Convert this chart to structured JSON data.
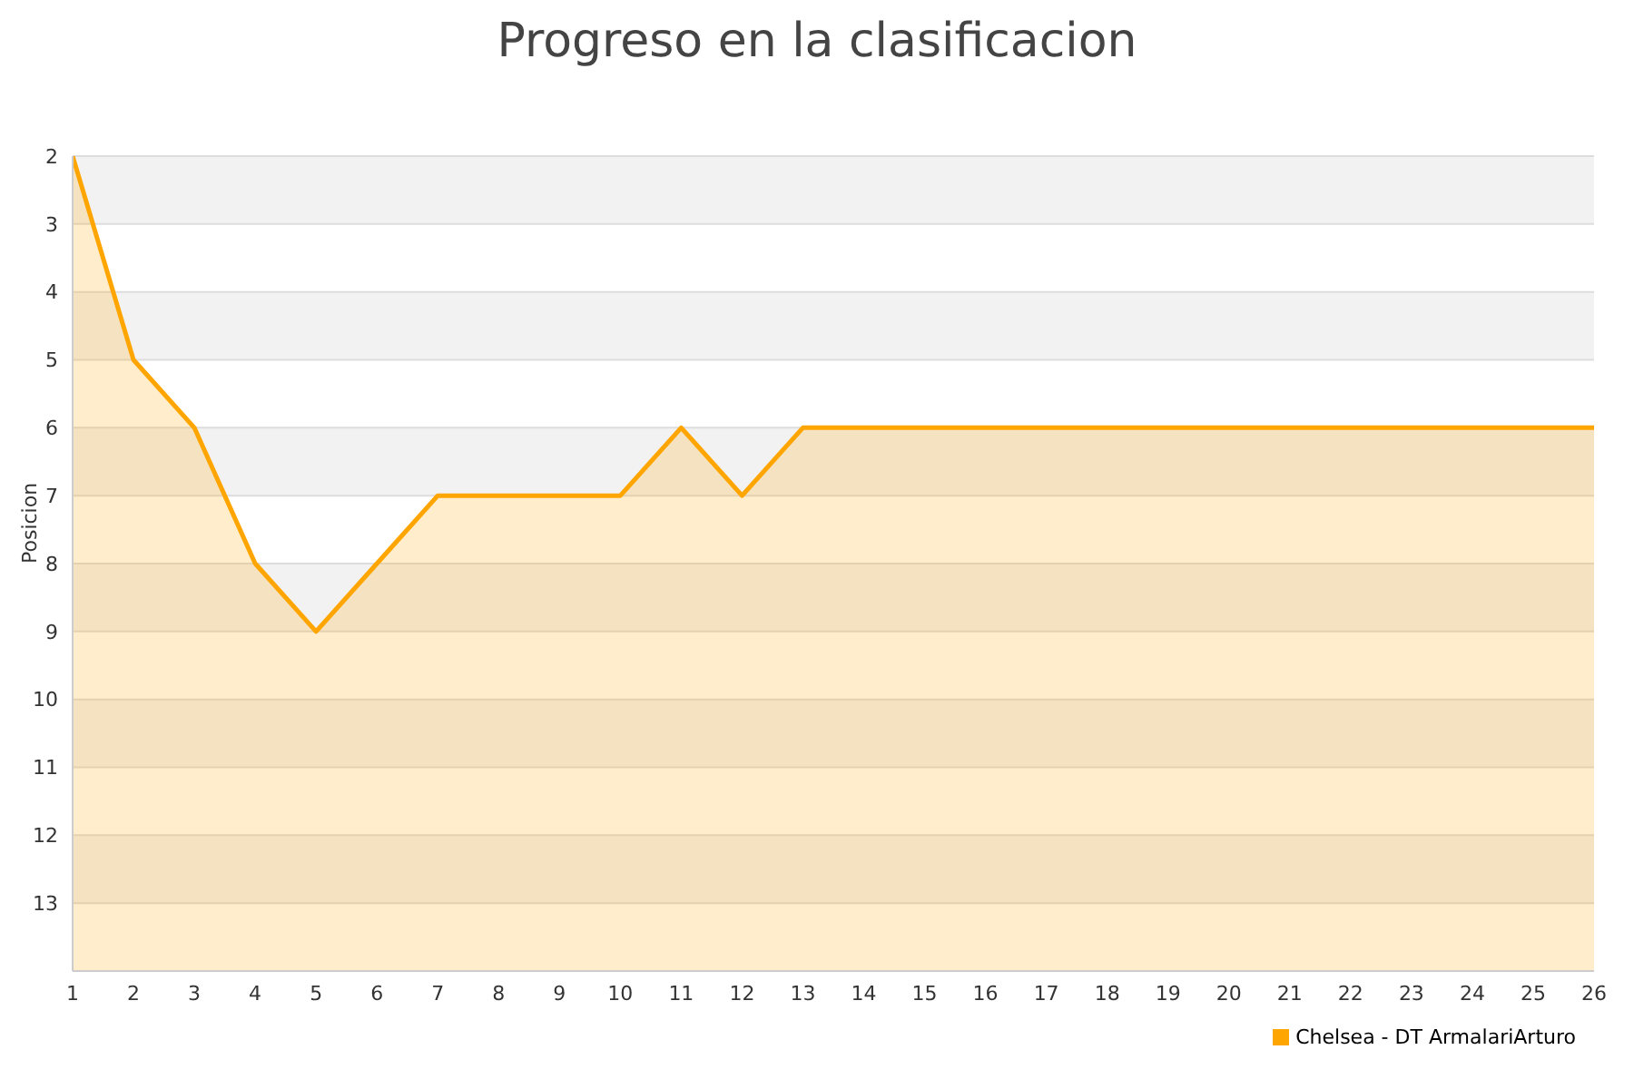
{
  "chart_data": {
    "type": "line",
    "title": "Progreso en la clasificacion",
    "ylabel": "Posicion",
    "x": [
      1,
      2,
      3,
      4,
      5,
      6,
      7,
      8,
      9,
      10,
      11,
      12,
      13,
      14,
      15,
      16,
      17,
      18,
      19,
      20,
      21,
      22,
      23,
      24,
      25,
      26
    ],
    "series": [
      {
        "name": "Chelsea - DT ArmalariArturo",
        "color": "#ffa500",
        "values": [
          2,
          5,
          6,
          8,
          9,
          8,
          7,
          7,
          7,
          7,
          6,
          7,
          6,
          6,
          6,
          6,
          6,
          6,
          6,
          6,
          6,
          6,
          6,
          6,
          6,
          6
        ],
        "lower": [
          2,
          5,
          6,
          8,
          9,
          8,
          7,
          7,
          7,
          7,
          6,
          7,
          6,
          6,
          6,
          6,
          6,
          6,
          6,
          6,
          6,
          6,
          6,
          6,
          6,
          6
        ],
        "upper": [
          14,
          14,
          14,
          14,
          14,
          14,
          14,
          14,
          14,
          14,
          14,
          14,
          14,
          14,
          14,
          14,
          14,
          14,
          14,
          14,
          14,
          14,
          14,
          14,
          14,
          14
        ]
      }
    ],
    "xlim": [
      1,
      26
    ],
    "xticks": [
      1,
      2,
      3,
      4,
      5,
      6,
      7,
      8,
      9,
      10,
      11,
      12,
      13,
      14,
      15,
      16,
      17,
      18,
      19,
      20,
      21,
      22,
      23,
      24,
      25,
      26
    ],
    "ylim": [
      14,
      2
    ],
    "yticks": [
      2,
      3,
      4,
      5,
      6,
      7,
      8,
      9,
      10,
      11,
      12,
      13
    ],
    "grid": "y",
    "legend": "bottom right",
    "marker": "none",
    "line_style": "solid"
  }
}
